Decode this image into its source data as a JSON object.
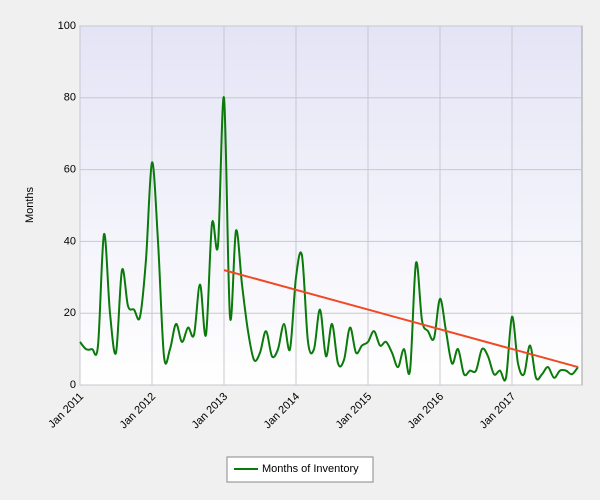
{
  "chart_data": {
    "type": "line",
    "ylabel": "Months",
    "categories": [
      "Jan 2011",
      null,
      null,
      null,
      null,
      null,
      null,
      null,
      null,
      null,
      null,
      null,
      "Jan 2012",
      null,
      null,
      null,
      null,
      null,
      null,
      null,
      null,
      null,
      null,
      null,
      "Jan 2013",
      null,
      null,
      null,
      null,
      null,
      null,
      null,
      null,
      null,
      null,
      null,
      "Jan 2014",
      null,
      null,
      null,
      null,
      null,
      null,
      null,
      null,
      null,
      null,
      null,
      "Jan 2015",
      null,
      null,
      null,
      null,
      null,
      null,
      null,
      null,
      null,
      null,
      null,
      "Jan 2016",
      null,
      null,
      null,
      null,
      null,
      null,
      null,
      null,
      null,
      null,
      null,
      "Jan 2017",
      null,
      null,
      null,
      null,
      null,
      null,
      null,
      null,
      null,
      null,
      null
    ],
    "series": [
      {
        "name": "Months of Inventory",
        "color": "#0a7a0a",
        "values": [
          12,
          10,
          10,
          11,
          42,
          20,
          9,
          32,
          22,
          21,
          19,
          35,
          62,
          40,
          8,
          10,
          17,
          12,
          16,
          14,
          28,
          14,
          45,
          39,
          80,
          19,
          43,
          28,
          15,
          7,
          9,
          15,
          8,
          10,
          17,
          10,
          30,
          36,
          12,
          10,
          21,
          8,
          17,
          6,
          7,
          16,
          9,
          11,
          12,
          15,
          11,
          12,
          9,
          5,
          10,
          4,
          34,
          18,
          15,
          13,
          24,
          15,
          6,
          10,
          3,
          4,
          4,
          10,
          8,
          3,
          4,
          2,
          19,
          6,
          3,
          11,
          2,
          3,
          5,
          2,
          4,
          4,
          3,
          5
        ]
      }
    ],
    "trend": {
      "color": "#f04a24",
      "x": [
        24,
        83
      ],
      "values": [
        32,
        5
      ]
    },
    "ylim": [
      0,
      100
    ],
    "yticks": [
      0,
      20,
      40,
      60,
      80,
      100
    ],
    "grid": true,
    "legend": "bottom"
  }
}
